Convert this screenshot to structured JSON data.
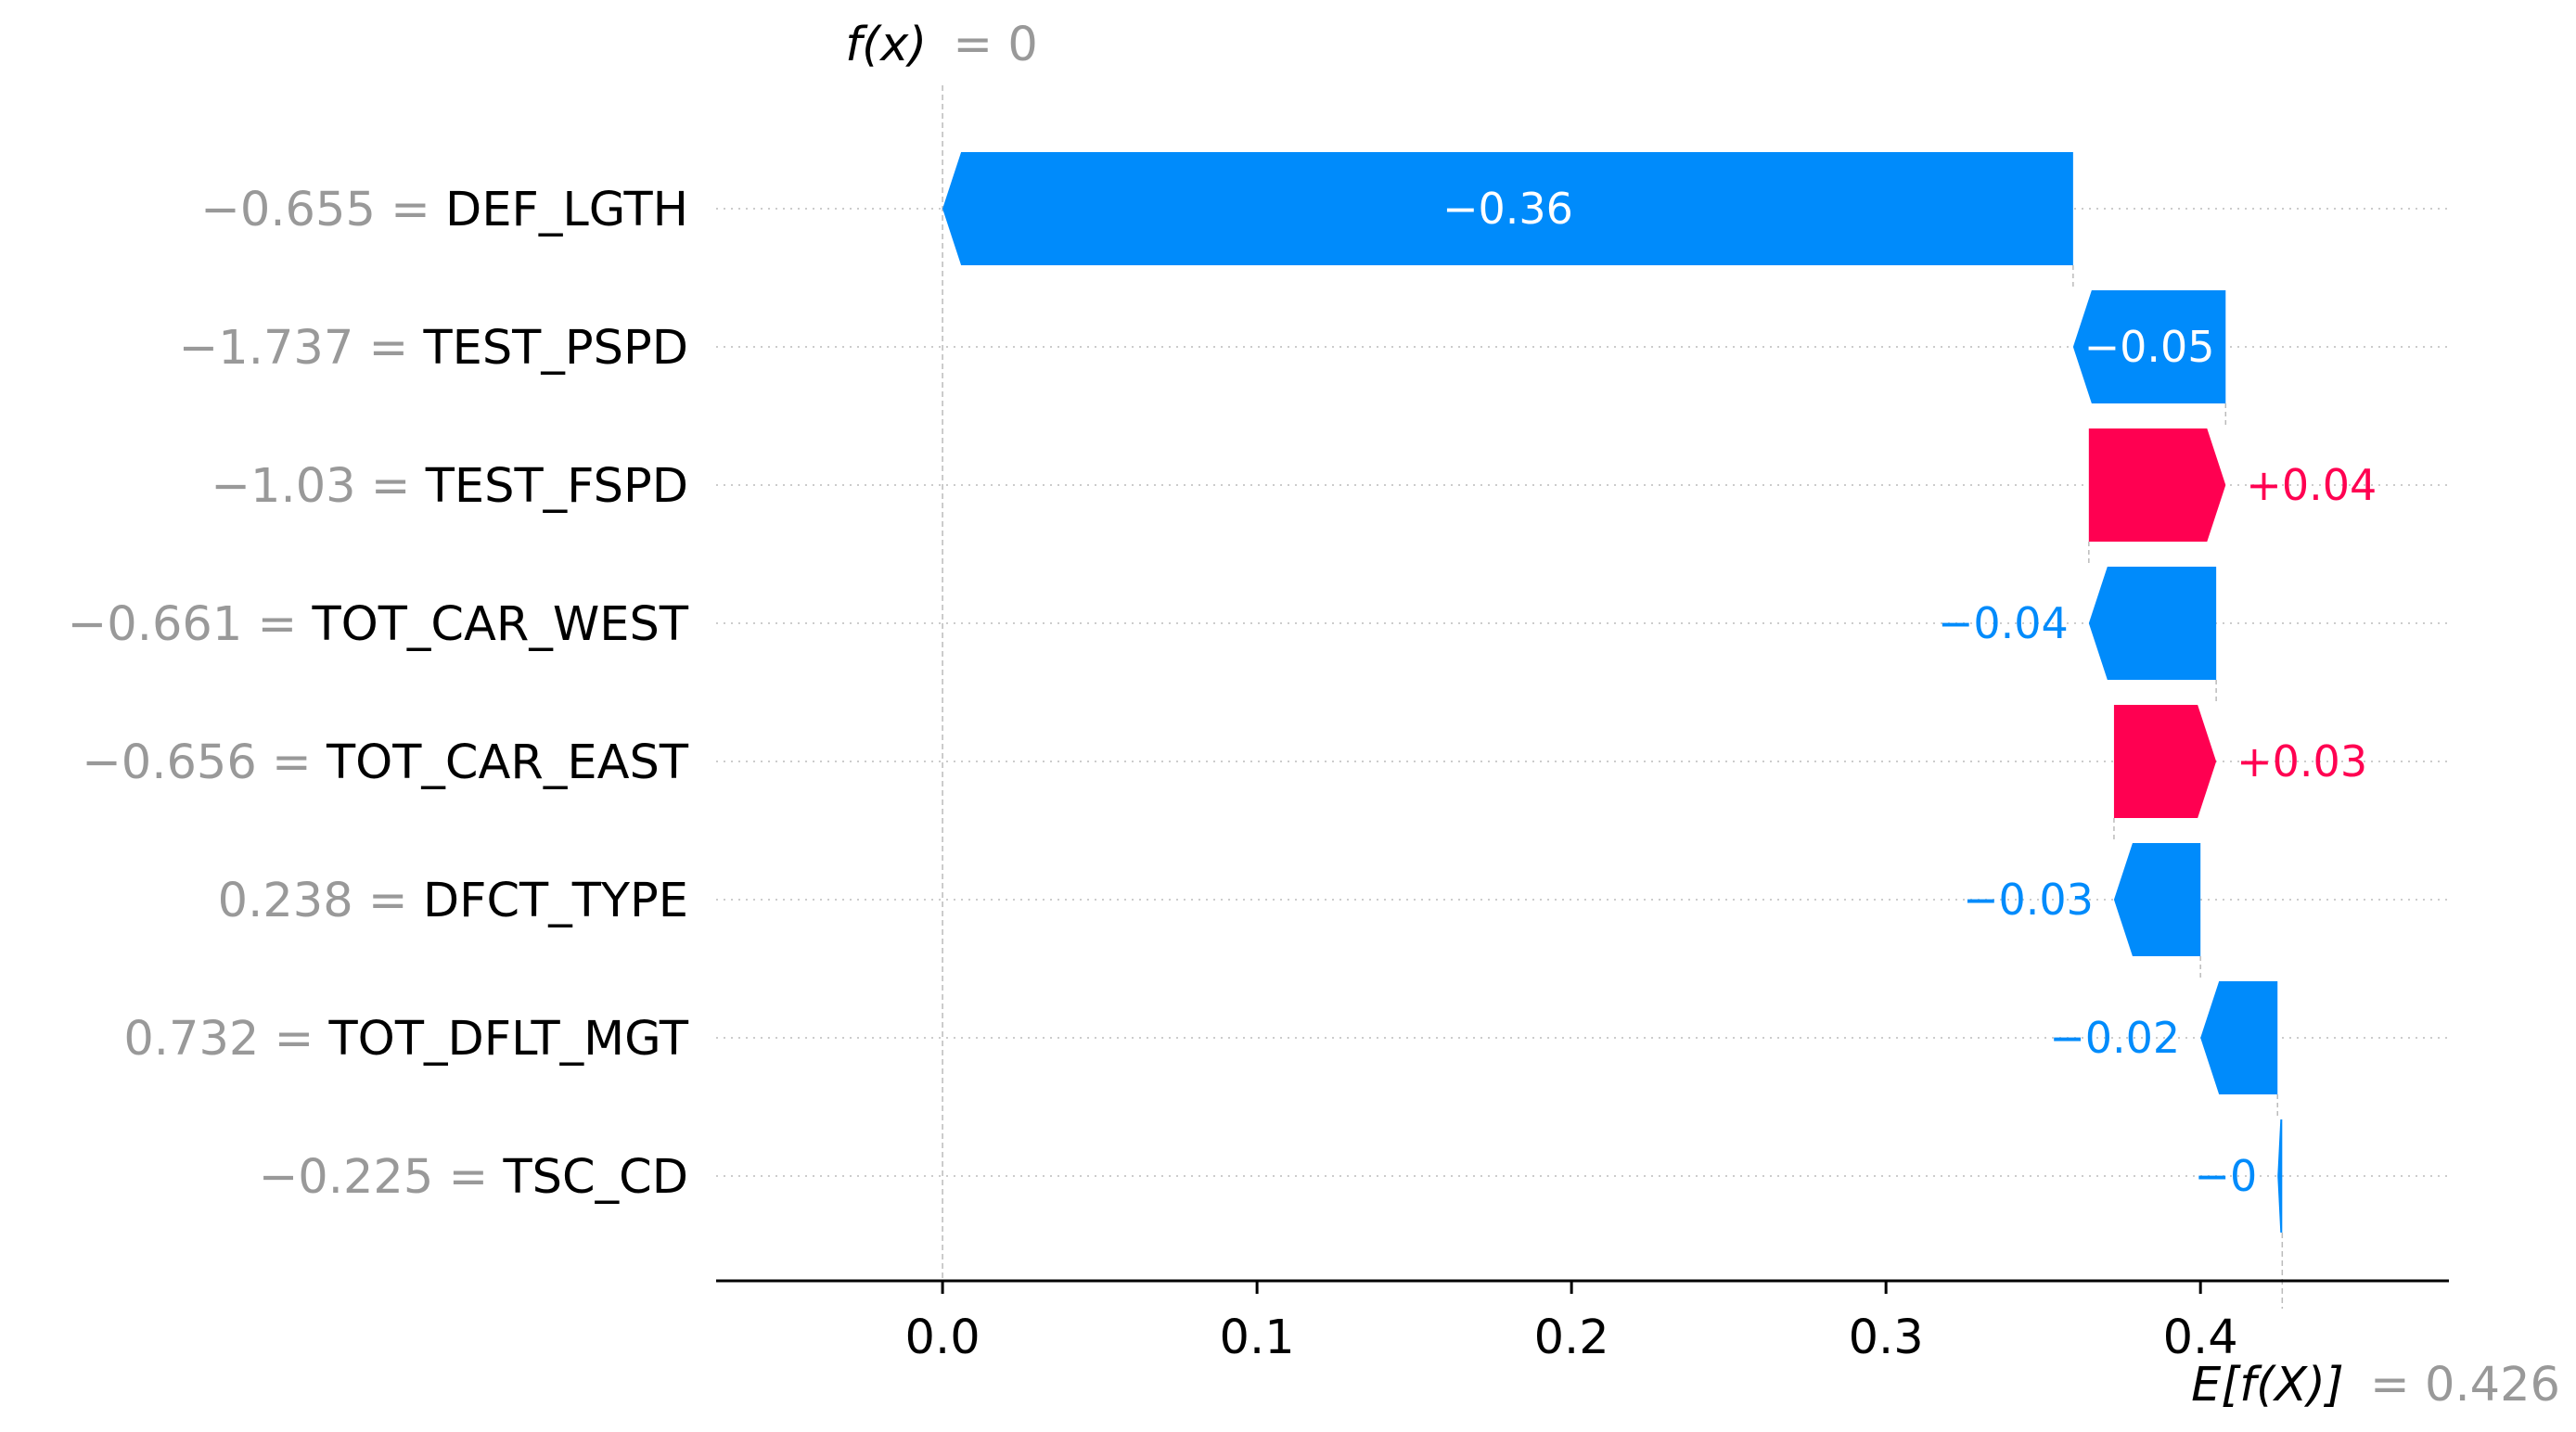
{
  "chart_data": {
    "type": "waterfall",
    "top_label": {
      "symbol": "f(x)",
      "equals": "= 0"
    },
    "bottom_label": {
      "symbol": "E[f(X)]",
      "equals": "= 0.426"
    },
    "base_value": 0.426,
    "output_value": 0,
    "xlim": [
      -0.072,
      0.479
    ],
    "xticks": [
      {
        "value": 0.0,
        "label": "0.0"
      },
      {
        "value": 0.1,
        "label": "0.1"
      },
      {
        "value": 0.2,
        "label": "0.2"
      },
      {
        "value": 0.3,
        "label": "0.3"
      },
      {
        "value": 0.4,
        "label": "0.4"
      }
    ],
    "features": [
      {
        "value_text": "−0.655",
        "name": "DEF_LGTH",
        "contribution": -0.36,
        "label": "−0.36",
        "start": 0.3595,
        "end": 0.0
      },
      {
        "value_text": "−1.737",
        "name": "TEST_PSPD",
        "contribution": -0.05,
        "label": "−0.05",
        "start": 0.408,
        "end": 0.3595
      },
      {
        "value_text": "−1.03",
        "name": "TEST_FSPD",
        "contribution": 0.04,
        "label": "+0.04",
        "start": 0.3645,
        "end": 0.408
      },
      {
        "value_text": "−0.661",
        "name": "TOT_CAR_WEST",
        "contribution": -0.04,
        "label": "−0.04",
        "start": 0.405,
        "end": 0.3645
      },
      {
        "value_text": "−0.656",
        "name": "TOT_CAR_EAST",
        "contribution": 0.03,
        "label": "+0.03",
        "start": 0.3725,
        "end": 0.405
      },
      {
        "value_text": "0.238",
        "name": "DFCT_TYPE",
        "contribution": -0.03,
        "label": "−0.03",
        "start": 0.4,
        "end": 0.3725
      },
      {
        "value_text": "0.732",
        "name": "TOT_DFLT_MGT",
        "contribution": -0.02,
        "label": "−0.02",
        "start": 0.4245,
        "end": 0.4
      },
      {
        "value_text": "−0.225",
        "name": "TSC_CD",
        "contribution": -0.0015,
        "label": "−0",
        "start": 0.426,
        "end": 0.4245
      }
    ],
    "colors": {
      "negative": "#008bfb",
      "positive": "#ff0051",
      "value_text": "#999999"
    }
  }
}
